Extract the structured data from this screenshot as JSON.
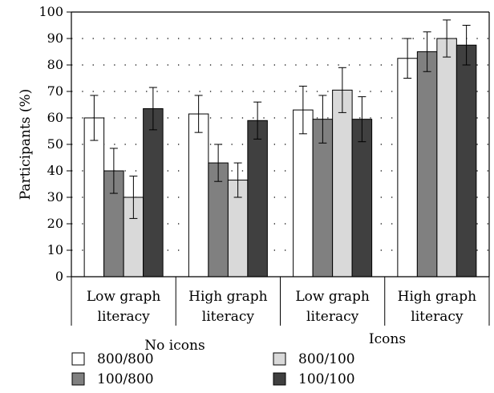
{
  "chart_data": {
    "type": "bar",
    "ylabel": "Participants (%)",
    "ylim": [
      0,
      100
    ],
    "yticks": [
      0,
      10,
      20,
      30,
      40,
      50,
      60,
      70,
      80,
      90,
      100
    ],
    "grid": "dotted horizontal",
    "categories": [
      {
        "line1": "Low graph",
        "line2": "literacy"
      },
      {
        "line1": "High graph",
        "line2": "literacy"
      },
      {
        "line1": "Low graph",
        "line2": "literacy"
      },
      {
        "line1": "High graph",
        "line2": "literacy"
      }
    ],
    "groups": [
      {
        "label": "No icons",
        "categories": [
          0,
          1
        ]
      },
      {
        "label": "Icons",
        "categories": [
          2,
          3
        ]
      }
    ],
    "series": [
      {
        "name": "800/800",
        "color": "#ffffff",
        "values": [
          60,
          61.5,
          63,
          82.5
        ],
        "error": [
          8.5,
          7,
          9,
          7.5
        ]
      },
      {
        "name": "100/800",
        "color": "#808080",
        "values": [
          40,
          43,
          59.5,
          85
        ],
        "error": [
          8.5,
          7,
          9,
          7.5
        ]
      },
      {
        "name": "800/100",
        "color": "#d9d9d9",
        "values": [
          30,
          36.5,
          70.5,
          90
        ],
        "error": [
          8,
          6.5,
          8.5,
          7
        ]
      },
      {
        "name": "100/100",
        "color": "#404040",
        "values": [
          63.5,
          59,
          59.5,
          87.5
        ],
        "error": [
          8,
          7,
          8.5,
          7.5
        ]
      }
    ],
    "legend": "bottom"
  }
}
